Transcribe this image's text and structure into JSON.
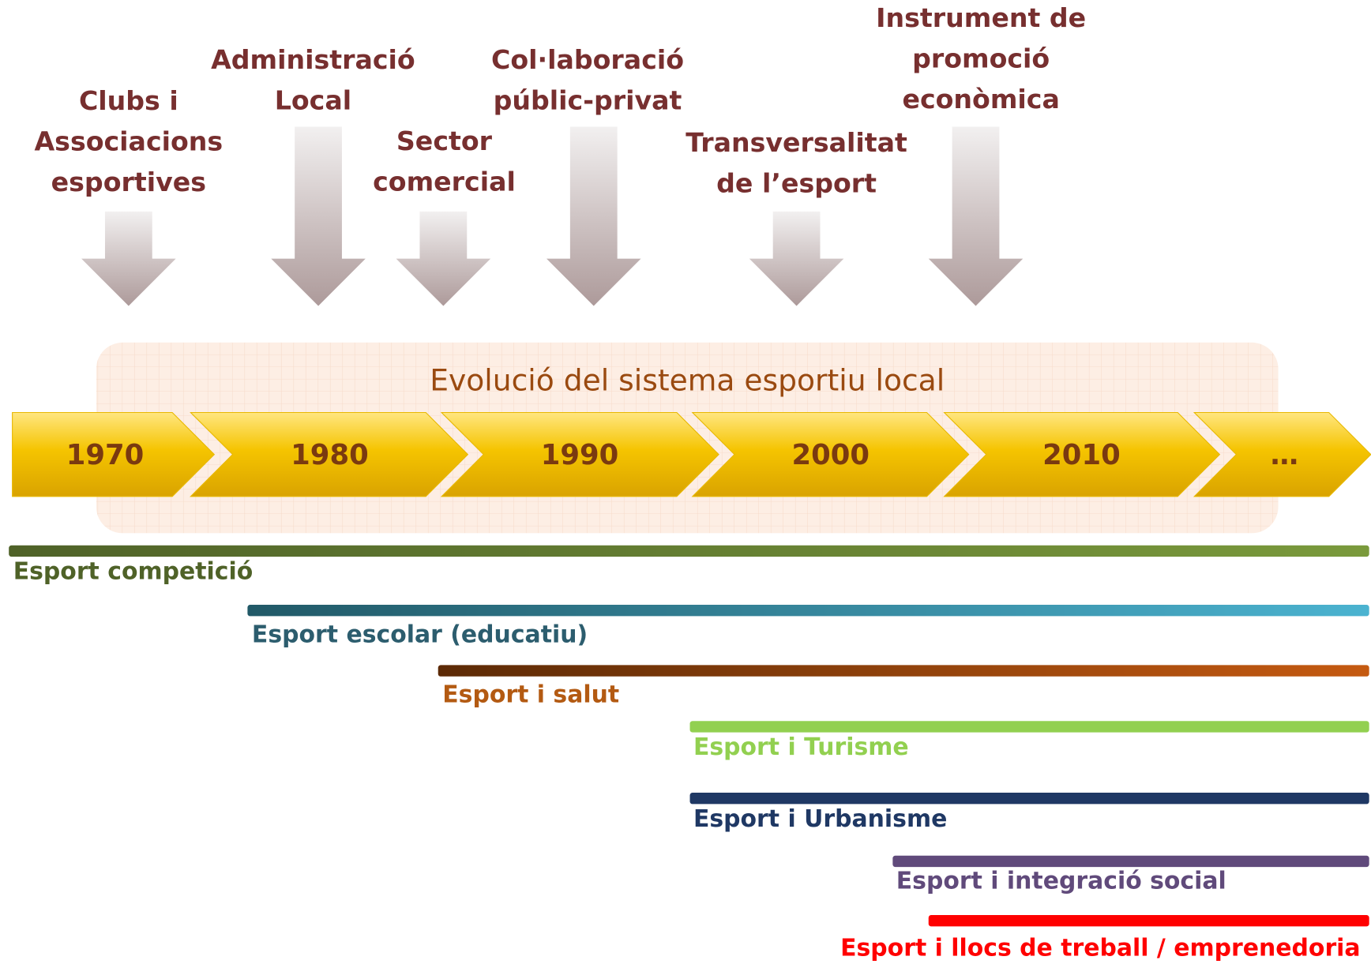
{
  "actors": [
    {
      "lines": [
        "Clubs i",
        "Associacions",
        "esportives"
      ]
    },
    {
      "lines": [
        "Administració",
        "Local"
      ]
    },
    {
      "lines": [
        "Sector",
        "comercial"
      ]
    },
    {
      "lines": [
        "Col·laboració",
        "públic-privat"
      ]
    },
    {
      "lines": [
        "Transversalitat",
        "de l’esport"
      ]
    },
    {
      "lines": [
        "Instrument de",
        "promoció",
        "econòmica"
      ]
    }
  ],
  "timeline_title": "Evolució del sistema esportiu local",
  "periods": [
    "1970",
    "1980",
    "1990",
    "2000",
    "2010",
    "…"
  ],
  "themes": [
    {
      "label": "Esport competició"
    },
    {
      "label": "Esport escolar (educatiu)"
    },
    {
      "label": "Esport i salut"
    },
    {
      "label": "Esport i Turisme"
    },
    {
      "label": "Esport i Urbanisme"
    },
    {
      "label": "Esport i integració social"
    },
    {
      "label": "Esport i llocs de treball / emprenedoria"
    }
  ]
}
